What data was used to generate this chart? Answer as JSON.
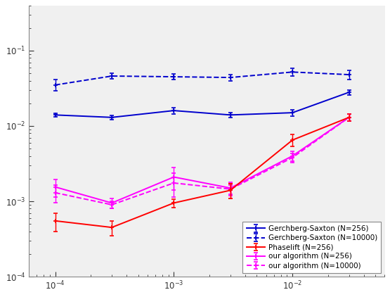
{
  "x_values": [
    0.0001,
    0.0003,
    0.001,
    0.003,
    0.01,
    0.03
  ],
  "gs_256_y": [
    0.014,
    0.013,
    0.016,
    0.014,
    0.015,
    0.028
  ],
  "gs_256_yerr": [
    0.0008,
    0.0008,
    0.0015,
    0.001,
    0.0015,
    0.002
  ],
  "gs_10000_y": [
    0.035,
    0.046,
    0.045,
    0.044,
    0.052,
    0.048
  ],
  "gs_10000_yerr": [
    0.006,
    0.004,
    0.004,
    0.004,
    0.006,
    0.007
  ],
  "pl_256_y": [
    0.00055,
    0.00045,
    0.00095,
    0.0014,
    0.0065,
    0.013
  ],
  "pl_256_yerr": [
    0.00015,
    0.0001,
    0.00012,
    0.0003,
    0.0012,
    0.0015
  ],
  "our_256_y": [
    0.00155,
    0.00095,
    0.0021,
    0.0015,
    0.004,
    0.013
  ],
  "our_256_yerr": [
    0.0004,
    0.00015,
    0.0007,
    0.0003,
    0.0006,
    0.0015
  ],
  "our_10000_y": [
    0.0013,
    0.0009,
    0.00175,
    0.00145,
    0.0038,
    0.013
  ],
  "our_10000_yerr": [
    0.00035,
    0.0001,
    0.0006,
    0.0002,
    0.0005,
    0.0015
  ],
  "color_blue": "#0000cd",
  "color_red": "#ff0000",
  "color_magenta": "#ff00ff",
  "xlim": [
    6e-05,
    0.06
  ],
  "ylim": [
    0.0001,
    0.4
  ],
  "legend_labels": [
    "Gerchberg-Saxton (N=256)",
    "Gerchberg-Saxton (N=10000)",
    "Phaselift (N=256)",
    "our algorithm (N=256)",
    "our algorithm (N=10000)"
  ],
  "bg_color": "#f0f0f0",
  "figsize": [
    5.55,
    4.22
  ],
  "dpi": 100
}
